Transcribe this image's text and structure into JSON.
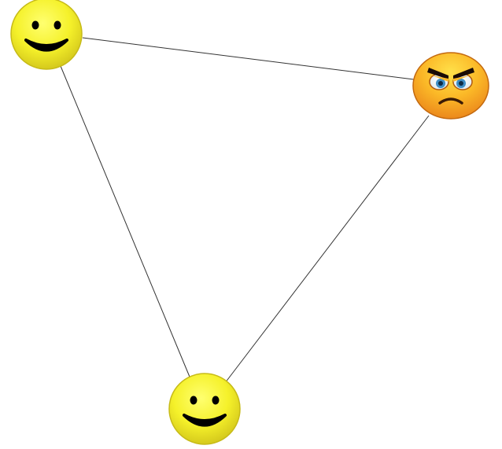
{
  "diagram": {
    "nodes": [
      {
        "id": "top-left",
        "icon": "happy-face-icon",
        "mood": "happy"
      },
      {
        "id": "right",
        "icon": "angry-face-icon",
        "mood": "angry"
      },
      {
        "id": "bottom",
        "icon": "happy-face-icon",
        "mood": "happy"
      }
    ],
    "edges": [
      {
        "from": "top-left",
        "to": "right"
      },
      {
        "from": "top-left",
        "to": "bottom"
      },
      {
        "from": "right",
        "to": "bottom"
      }
    ],
    "colors": {
      "happy_face": "#f5f12a",
      "angry_face": "#fba81f",
      "edge": "#333333",
      "background": "#ffffff"
    }
  }
}
